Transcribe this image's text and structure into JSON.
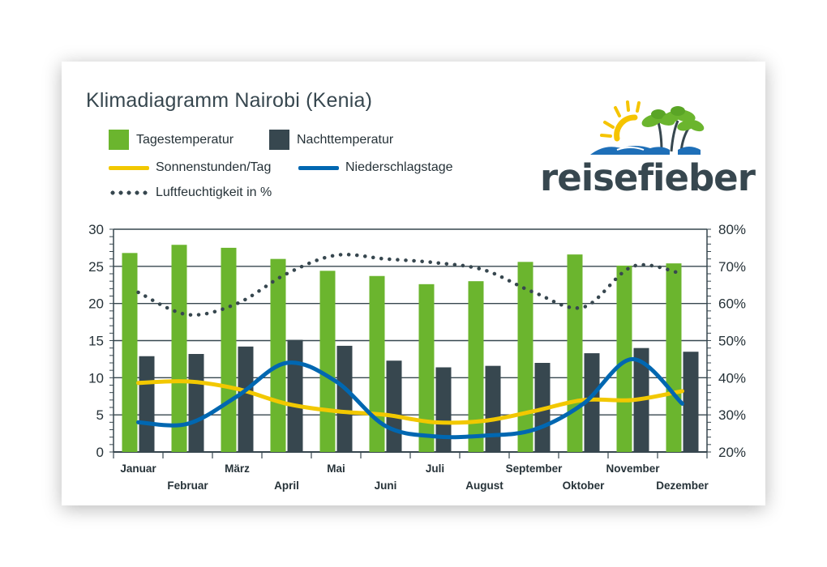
{
  "chart_data": {
    "type": "bar",
    "title": "Klimadiagramm Nairobi (Kenia)",
    "categories": [
      "Januar",
      "Februar",
      "März",
      "April",
      "Mai",
      "Juni",
      "Juli",
      "August",
      "September",
      "Oktober",
      "November",
      "Dezember"
    ],
    "series": [
      {
        "name": "Tagestemperatur",
        "type": "bar",
        "axis": "left",
        "color": "#6bb52e",
        "values": [
          26.8,
          27.9,
          27.5,
          26.0,
          24.4,
          23.7,
          22.6,
          23.0,
          25.6,
          26.6,
          25.1,
          25.4
        ]
      },
      {
        "name": "Nachttemperatur",
        "type": "bar",
        "axis": "left",
        "color": "#37474f",
        "values": [
          12.9,
          13.2,
          14.2,
          15.1,
          14.3,
          12.3,
          11.4,
          11.6,
          12.0,
          13.3,
          14.0,
          13.5
        ]
      },
      {
        "name": "Sonnenstunden/Tag",
        "type": "line",
        "axis": "left",
        "color": "#f2c800",
        "values": [
          9.3,
          9.5,
          8.5,
          6.5,
          5.5,
          5.0,
          4.0,
          4.2,
          5.5,
          7.0,
          7.0,
          8.2
        ]
      },
      {
        "name": "Niederschlagstage",
        "type": "line",
        "axis": "left",
        "color": "#0067b1",
        "values": [
          4.0,
          3.8,
          7.5,
          12.0,
          9.5,
          3.5,
          2.1,
          2.2,
          3.0,
          6.5,
          12.5,
          6.5
        ]
      },
      {
        "name": "Luftfeuchtigkeit in %",
        "type": "dotted-line",
        "axis": "right",
        "color": "#37474f",
        "values": [
          63,
          57,
          60,
          68,
          73,
          72,
          71,
          69,
          63,
          59,
          70,
          68
        ]
      }
    ],
    "y_left": {
      "ylim": [
        0,
        30
      ],
      "ticks": [
        0,
        5,
        10,
        15,
        20,
        25,
        30
      ]
    },
    "y_right": {
      "ylim": [
        20,
        80
      ],
      "ticks": [
        "20%",
        "30%",
        "40%",
        "50%",
        "60%",
        "70%",
        "80%"
      ],
      "tick_values": [
        20,
        30,
        40,
        50,
        60,
        70,
        80
      ]
    },
    "grid": true,
    "legend": "top-left"
  },
  "legend": {
    "tag": "Tagestemperatur",
    "nacht": "Nachttemperatur",
    "sonne": "Sonnenstunden/Tag",
    "regen": "Niederschlagstage",
    "feucht": "Luftfeuchtigkeit in %"
  },
  "logo": {
    "text": "reisefieber"
  },
  "colors": {
    "green": "#6bb52e",
    "dark": "#37474f",
    "yellow": "#f2c800",
    "blue": "#0067b1",
    "sun": "#f5c400",
    "wave": "#1e6fb8"
  }
}
